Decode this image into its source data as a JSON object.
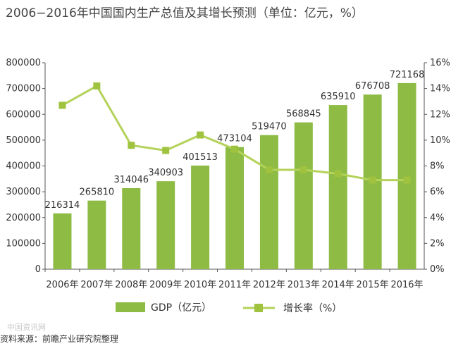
{
  "chart_data": {
    "type": "bar",
    "title": "2006−2016年中国国内生产总值及其增长预测（单位：亿元，%）",
    "categories": [
      "2006年",
      "2007年",
      "2008年",
      "2009年",
      "2010年",
      "2011年",
      "2012年",
      "2013年",
      "2014年",
      "2015年",
      "2016年"
    ],
    "series": [
      {
        "name": "GDP（亿元）",
        "type": "bar",
        "axis": "left",
        "color": "#8dbb44",
        "values": [
          216314,
          265810,
          314046,
          340903,
          401513,
          473104,
          519470,
          568845,
          635910,
          676708,
          721168
        ]
      },
      {
        "name": "增长率（%）",
        "type": "line",
        "axis": "right",
        "color": "#b4d25a",
        "values": [
          12.7,
          14.2,
          9.6,
          9.2,
          10.4,
          9.3,
          7.7,
          7.7,
          7.4,
          6.9,
          6.9
        ]
      }
    ],
    "data_labels": [
      "216314",
      "265810",
      "314046",
      "340903",
      "401513",
      "473104",
      "519470",
      "568845",
      "635910",
      "676708",
      "721168"
    ],
    "ylim_left": [
      0,
      800000
    ],
    "yticks_left": [
      "0",
      "100000",
      "200000",
      "300000",
      "400000",
      "500000",
      "600000",
      "700000",
      "800000"
    ],
    "ylim_right": [
      0,
      16
    ],
    "yticks_right": [
      "0%",
      "2%",
      "4%",
      "6%",
      "8%",
      "10%",
      "12%",
      "14%",
      "16%"
    ],
    "grid": false,
    "legend_position": "bottom"
  },
  "source_note": "资料来源：前瞻产业研究院整理",
  "watermark": "中国资讯网"
}
